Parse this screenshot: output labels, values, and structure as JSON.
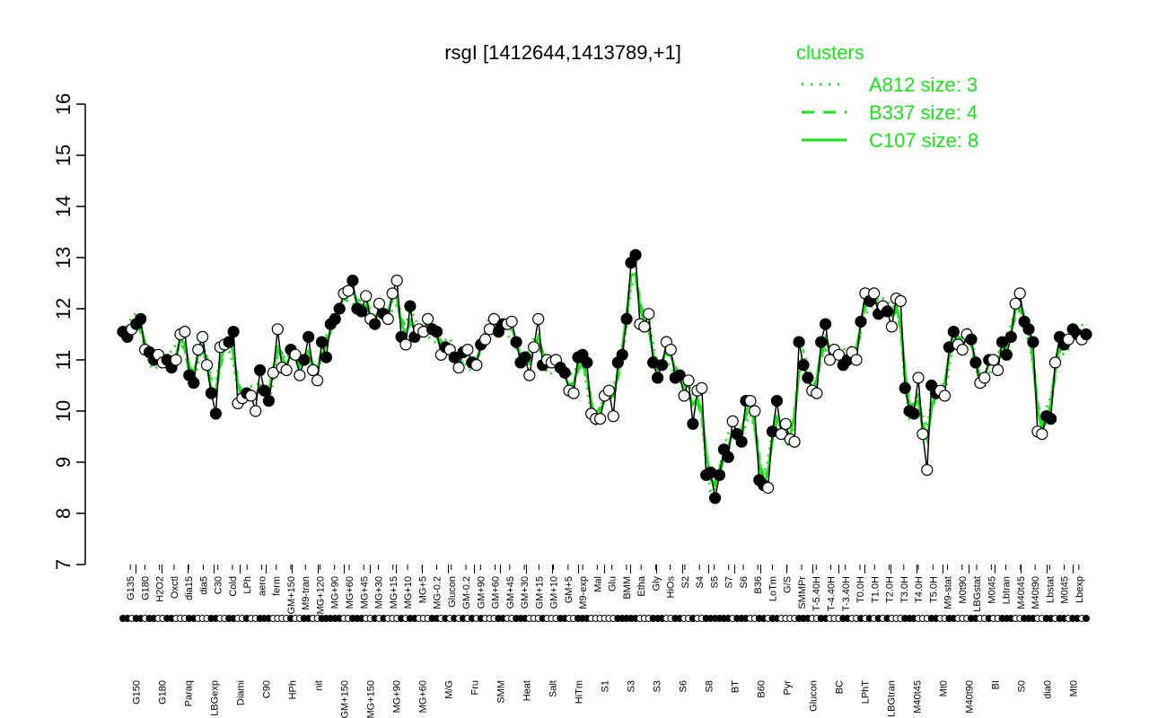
{
  "chart_data": {
    "type": "line",
    "title": "rsgI [1412644,1413789,+1]",
    "xlabel": "",
    "ylabel": "",
    "ylim": [
      7,
      16
    ],
    "yticks": [
      7,
      8,
      9,
      10,
      11,
      12,
      13,
      14,
      15,
      16
    ],
    "colors": {
      "clusters": "#19e619",
      "points_outline": "#000000"
    },
    "legend": {
      "title": "clusters",
      "position": "top-right",
      "entries": [
        {
          "label": "A812 size: 3",
          "style": "dotted"
        },
        {
          "label": "B337 size: 4",
          "style": "dashed"
        },
        {
          "label": "C107 size: 8",
          "style": "solid"
        }
      ]
    },
    "upper_labels": [
      "G135",
      "G180",
      "H2O2",
      "Oxctl",
      "dia15",
      "dia5",
      "C30",
      "Cold",
      "LPh",
      "aero",
      "ferm",
      "GM+150",
      "M9-tran",
      "MG+120",
      "MG+90",
      "MG+60",
      "MG+45",
      "MG+30",
      "MG+15",
      "MG+10",
      "MG+5",
      "MG-0.2",
      "Glucon",
      "GM-0.2",
      "GM+90",
      "GM+60",
      "GM+45",
      "GM+30",
      "GM+15",
      "GM+10",
      "GM+5",
      "M9-exp",
      "Mal",
      "Glu",
      "BMM",
      "Etha",
      "Gly",
      "HiOs",
      "S2",
      "S4",
      "S5",
      "S7",
      "S6",
      "B36",
      "LoTm",
      "G/S",
      "SMMPr",
      "T-5.40H",
      "T-4.40H",
      "T-3.40H",
      "T0.0H",
      "T1.0H",
      "T2.0H",
      "T3.0H",
      "T4.0H",
      "T5.0H",
      "M9-stat",
      "M0t90",
      "LBGstat",
      "M0t45",
      "Lbtran",
      "M40t45",
      "M40t90",
      "Lbstat",
      "M0t45",
      "Lbexp"
    ],
    "lower_labels": [
      "G150",
      "G180",
      "Paraq",
      "LBGexp",
      "Diami",
      "C90",
      "HPh",
      "nit",
      "GM+150",
      "MG+150",
      "MG+90",
      "MG+60",
      "M/G",
      "Fru",
      "SMM",
      "Heat",
      "Salt",
      "HiTm",
      "S1",
      "S3",
      "S3",
      "S6",
      "S8",
      "BT",
      "B60",
      "Pyr",
      "Glucon",
      "BC",
      "LPhT",
      "LBGtran",
      "M40t45",
      "Mt0",
      "M40t90",
      "BI",
      "S0",
      "dia0",
      "Mt0"
    ],
    "points": [
      [
        "filled",
        11.55
      ],
      [
        "filled",
        11.45
      ],
      [
        "open",
        11.6
      ],
      [
        "filled",
        11.7
      ],
      [
        "filled",
        11.8
      ],
      [
        "open",
        11.2
      ],
      [
        "filled",
        11.15
      ],
      [
        "filled",
        11.0
      ],
      [
        "open",
        11.1
      ],
      [
        "open",
        10.95
      ],
      [
        "filled",
        11.0
      ],
      [
        "filled",
        10.85
      ],
      [
        "open",
        11.0
      ],
      [
        "open",
        11.5
      ],
      [
        "open",
        11.55
      ],
      [
        "filled",
        10.7
      ],
      [
        "filled",
        10.55
      ],
      [
        "open",
        11.2
      ],
      [
        "open",
        11.45
      ],
      [
        "open",
        10.9
      ],
      [
        "filled",
        10.35
      ],
      [
        "filled",
        9.95
      ],
      [
        "open",
        11.25
      ],
      [
        "open",
        11.3
      ],
      [
        "filled",
        11.35
      ],
      [
        "filled",
        11.55
      ],
      [
        "open",
        10.15
      ],
      [
        "open",
        10.25
      ],
      [
        "filled",
        10.35
      ],
      [
        "open",
        10.3
      ],
      [
        "open",
        10.0
      ],
      [
        "filled",
        10.8
      ],
      [
        "filled",
        10.4
      ],
      [
        "filled",
        10.2
      ],
      [
        "open",
        10.75
      ],
      [
        "open",
        11.6
      ],
      [
        "open",
        10.85
      ],
      [
        "open",
        10.8
      ],
      [
        "filled",
        11.2
      ],
      [
        "open",
        11.1
      ],
      [
        "open",
        10.7
      ],
      [
        "filled",
        11.0
      ],
      [
        "filled",
        11.45
      ],
      [
        "open",
        10.8
      ],
      [
        "open",
        10.6
      ],
      [
        "filled",
        11.35
      ],
      [
        "filled",
        11.05
      ],
      [
        "filled",
        11.7
      ],
      [
        "filled",
        11.8
      ],
      [
        "filled",
        12.0
      ],
      [
        "open",
        12.3
      ],
      [
        "open",
        12.35
      ],
      [
        "filled",
        12.55
      ],
      [
        "filled",
        12.0
      ],
      [
        "filled",
        11.95
      ],
      [
        "open",
        12.25
      ],
      [
        "open",
        11.8
      ],
      [
        "filled",
        11.7
      ],
      [
        "open",
        12.1
      ],
      [
        "filled",
        11.9
      ],
      [
        "open",
        11.8
      ],
      [
        "open",
        12.3
      ],
      [
        "open",
        12.55
      ],
      [
        "filled",
        11.45
      ],
      [
        "open",
        11.3
      ],
      [
        "filled",
        12.05
      ],
      [
        "filled",
        11.45
      ],
      [
        "open",
        11.6
      ],
      [
        "open",
        11.55
      ],
      [
        "open",
        11.8
      ],
      [
        "filled",
        11.6
      ],
      [
        "filled",
        11.55
      ],
      [
        "open",
        11.1
      ],
      [
        "filled",
        11.25
      ],
      [
        "open",
        11.2
      ],
      [
        "filled",
        11.05
      ],
      [
        "open",
        10.85
      ],
      [
        "filled",
        11.15
      ],
      [
        "open",
        11.2
      ],
      [
        "filled",
        10.95
      ],
      [
        "open",
        10.9
      ],
      [
        "filled",
        11.3
      ],
      [
        "open",
        11.4
      ],
      [
        "open",
        11.6
      ],
      [
        "open",
        11.8
      ],
      [
        "filled",
        11.55
      ],
      [
        "filled",
        11.7
      ],
      [
        "open",
        11.7
      ],
      [
        "open",
        11.75
      ],
      [
        "filled",
        11.35
      ],
      [
        "filled",
        10.95
      ],
      [
        "filled",
        11.05
      ],
      [
        "open",
        10.7
      ],
      [
        "open",
        11.25
      ],
      [
        "open",
        11.8
      ],
      [
        "filled",
        10.9
      ],
      [
        "open",
        11.0
      ],
      [
        "open",
        10.95
      ],
      [
        "open",
        11.0
      ],
      [
        "filled",
        10.85
      ],
      [
        "filled",
        10.75
      ],
      [
        "open",
        10.4
      ],
      [
        "open",
        10.35
      ],
      [
        "filled",
        11.05
      ],
      [
        "filled",
        11.1
      ],
      [
        "filled",
        10.95
      ],
      [
        "open",
        9.95
      ],
      [
        "open",
        9.85
      ],
      [
        "open",
        9.85
      ],
      [
        "open",
        10.3
      ],
      [
        "open",
        10.4
      ],
      [
        "open",
        9.9
      ],
      [
        "filled",
        10.95
      ],
      [
        "filled",
        11.1
      ],
      [
        "filled",
        11.8
      ],
      [
        "filled",
        12.9
      ],
      [
        "filled",
        13.05
      ],
      [
        "open",
        11.7
      ],
      [
        "open",
        11.65
      ],
      [
        "open",
        11.9
      ],
      [
        "filled",
        10.95
      ],
      [
        "filled",
        10.65
      ],
      [
        "filled",
        10.9
      ],
      [
        "open",
        11.35
      ],
      [
        "open",
        11.2
      ],
      [
        "filled",
        10.65
      ],
      [
        "filled",
        10.7
      ],
      [
        "open",
        10.3
      ],
      [
        "open",
        10.6
      ],
      [
        "filled",
        9.75
      ],
      [
        "open",
        10.4
      ],
      [
        "open",
        10.45
      ],
      [
        "filled",
        8.75
      ],
      [
        "filled",
        8.8
      ],
      [
        "filled",
        8.3
      ],
      [
        "filled",
        8.75
      ],
      [
        "filled",
        9.25
      ],
      [
        "filled",
        9.1
      ],
      [
        "open",
        9.8
      ],
      [
        "filled",
        9.55
      ],
      [
        "filled",
        9.4
      ],
      [
        "filled",
        10.2
      ],
      [
        "open",
        10.2
      ],
      [
        "open",
        10.0
      ],
      [
        "filled",
        8.65
      ],
      [
        "filled",
        8.55
      ],
      [
        "open",
        8.5
      ],
      [
        "filled",
        9.6
      ],
      [
        "filled",
        10.2
      ],
      [
        "open",
        9.55
      ],
      [
        "open",
        9.75
      ],
      [
        "open",
        9.45
      ],
      [
        "open",
        9.4
      ],
      [
        "filled",
        11.35
      ],
      [
        "filled",
        10.9
      ],
      [
        "filled",
        10.65
      ],
      [
        "open",
        10.4
      ],
      [
        "open",
        10.35
      ],
      [
        "filled",
        11.35
      ],
      [
        "filled",
        11.7
      ],
      [
        "open",
        11.0
      ],
      [
        "open",
        11.2
      ],
      [
        "open",
        11.1
      ],
      [
        "filled",
        10.9
      ],
      [
        "filled",
        11.0
      ],
      [
        "open",
        11.15
      ],
      [
        "open",
        11.0
      ],
      [
        "filled",
        11.75
      ],
      [
        "open",
        12.3
      ],
      [
        "filled",
        12.15
      ],
      [
        "open",
        12.3
      ],
      [
        "filled",
        11.9
      ],
      [
        "open",
        12.05
      ],
      [
        "filled",
        11.95
      ],
      [
        "open",
        11.65
      ],
      [
        "open",
        12.2
      ],
      [
        "open",
        12.15
      ],
      [
        "filled",
        10.45
      ],
      [
        "filled",
        10.0
      ],
      [
        "filled",
        9.95
      ],
      [
        "open",
        10.65
      ],
      [
        "open",
        9.55
      ],
      [
        "open",
        8.85
      ],
      [
        "filled",
        10.5
      ],
      [
        "filled",
        10.35
      ],
      [
        "open",
        10.4
      ],
      [
        "open",
        10.3
      ],
      [
        "filled",
        11.25
      ],
      [
        "filled",
        11.55
      ],
      [
        "open",
        11.3
      ],
      [
        "open",
        11.2
      ],
      [
        "open",
        11.5
      ],
      [
        "filled",
        11.4
      ],
      [
        "filled",
        10.95
      ],
      [
        "open",
        10.55
      ],
      [
        "open",
        10.65
      ],
      [
        "filled",
        11.0
      ],
      [
        "open",
        11.0
      ],
      [
        "open",
        10.8
      ],
      [
        "filled",
        11.35
      ],
      [
        "filled",
        11.1
      ],
      [
        "filled",
        11.45
      ],
      [
        "open",
        12.1
      ],
      [
        "open",
        12.3
      ],
      [
        "filled",
        11.75
      ],
      [
        "filled",
        11.6
      ],
      [
        "filled",
        11.35
      ],
      [
        "open",
        9.6
      ],
      [
        "open",
        9.55
      ],
      [
        "filled",
        9.9
      ],
      [
        "filled",
        9.85
      ],
      [
        "open",
        10.95
      ],
      [
        "filled",
        11.45
      ],
      [
        "filled",
        11.3
      ],
      [
        "open",
        11.4
      ],
      [
        "filled",
        11.6
      ],
      [
        "filled",
        11.5
      ],
      [
        "open",
        11.4
      ],
      [
        "filled",
        11.5
      ]
    ]
  }
}
